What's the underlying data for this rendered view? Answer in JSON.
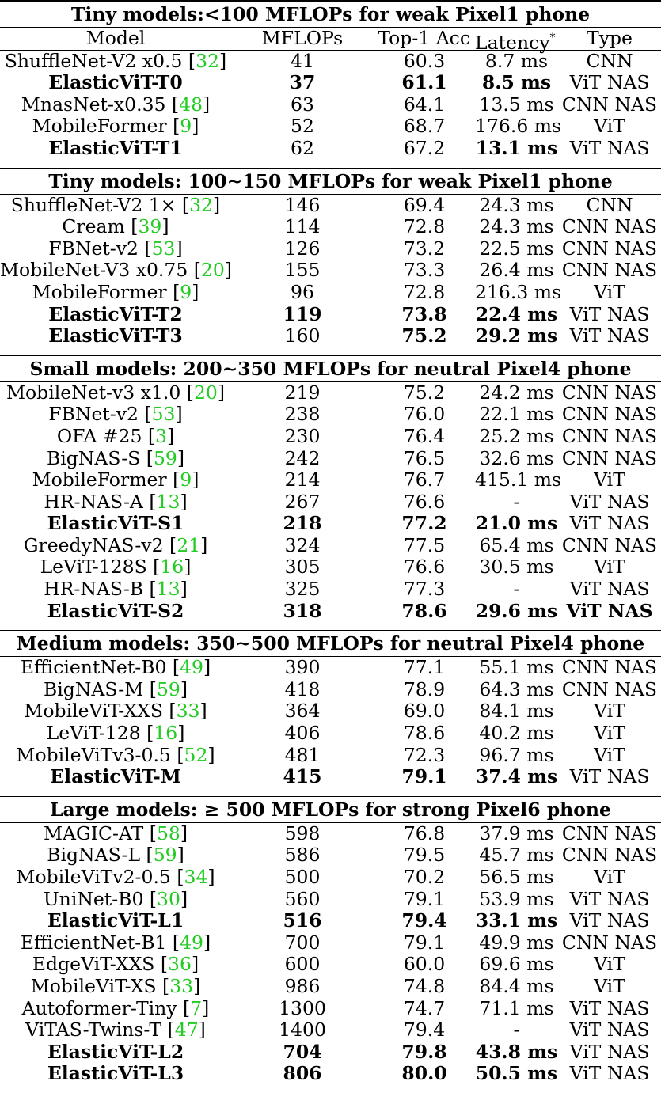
{
  "header": {
    "model": "Model",
    "mflops": "MFLOPs",
    "acc": "Top-1 Acc",
    "latency": "Latency",
    "latency_sup": "*",
    "type": "Type"
  },
  "sections": [
    {
      "title": "Tiny models:<100 MFLOPs for weak Pixel1 phone",
      "rows": [
        {
          "model": "ShuffleNet-V2 x0.5 [",
          "ref": "32",
          "mflops": "41",
          "acc": "60.3",
          "latency": "8.7 ms",
          "type": "CNN",
          "bold": false
        },
        {
          "model": "ElasticViT-T0",
          "ref": "",
          "mflops": "37",
          "acc": "61.1",
          "latency": "8.5 ms",
          "type": "ViT NAS",
          "bold": true
        },
        {
          "model": "MnasNet-x0.35 [",
          "ref": "48",
          "mflops": "63",
          "acc": "64.1",
          "latency": "13.5 ms",
          "type": "CNN NAS",
          "bold": false
        },
        {
          "model": "MobileFormer [",
          "ref": "9",
          "mflops": "52",
          "acc": "68.7",
          "latency": "176.6 ms",
          "type": "ViT",
          "bold": false
        },
        {
          "model": "ElasticViT-T1",
          "ref": "",
          "mflops": "62",
          "acc": "67.2",
          "latency": "13.1 ms",
          "type": "ViT NAS",
          "bold": true,
          "bold_cols": [
            "model",
            "latency"
          ]
        }
      ]
    },
    {
      "title": "Tiny models: 100∼150 MFLOPs for weak Pixel1 phone",
      "rows": [
        {
          "model": "ShuffleNet-V2 1× [",
          "ref": "32",
          "mflops": "146",
          "acc": "69.4",
          "latency": "24.3 ms",
          "type": "CNN",
          "bold": false
        },
        {
          "model": "Cream [",
          "ref": "39",
          "mflops": "114",
          "acc": "72.8",
          "latency": "24.3 ms",
          "type": "CNN NAS",
          "bold": false
        },
        {
          "model": "FBNet-v2 [",
          "ref": "53",
          "mflops": "126",
          "acc": "73.2",
          "latency": "22.5 ms",
          "type": "CNN NAS",
          "bold": false
        },
        {
          "model": "MobileNet-V3 x0.75 [",
          "ref": "20",
          "mflops": "155",
          "acc": "73.3",
          "latency": "26.4 ms",
          "type": "CNN NAS",
          "bold": false
        },
        {
          "model": "MobileFormer [",
          "ref": "9",
          "mflops": "96",
          "acc": "72.8",
          "latency": "216.3 ms",
          "type": "ViT",
          "bold": false
        },
        {
          "model": "ElasticViT-T2",
          "ref": "",
          "mflops": "119",
          "acc": "73.8",
          "latency": "22.4 ms",
          "type": "ViT NAS",
          "bold": true
        },
        {
          "model": "ElasticViT-T3",
          "ref": "",
          "mflops": "160",
          "acc": "75.2",
          "latency": "29.2 ms",
          "type": "ViT NAS",
          "bold": true,
          "bold_cols": [
            "model",
            "acc",
            "latency"
          ]
        }
      ]
    },
    {
      "title": "Small models: 200∼350 MFLOPs for neutral Pixel4 phone",
      "rows": [
        {
          "model": "MobileNet-v3 x1.0 [",
          "ref": "20",
          "mflops": "219",
          "acc": "75.2",
          "latency": "24.2 ms",
          "type": "CNN NAS",
          "bold": false
        },
        {
          "model": "FBNet-v2 [",
          "ref": "53",
          "mflops": "238",
          "acc": "76.0",
          "latency": "22.1 ms",
          "type": "CNN NAS",
          "bold": false
        },
        {
          "model": "OFA #25 [",
          "ref": "3",
          "mflops": "230",
          "acc": "76.4",
          "latency": "25.2 ms",
          "type": "CNN NAS",
          "bold": false
        },
        {
          "model": "BigNAS-S [",
          "ref": "59",
          "mflops": "242",
          "acc": "76.5",
          "latency": "32.6 ms",
          "type": "CNN NAS",
          "bold": false
        },
        {
          "model": "MobileFormer [",
          "ref": "9",
          "mflops": "214",
          "acc": "76.7",
          "latency": "415.1 ms",
          "type": "ViT",
          "bold": false
        },
        {
          "model": "HR-NAS-A [",
          "ref": "13",
          "mflops": "267",
          "acc": "76.6",
          "latency": "-",
          "type": "ViT NAS",
          "bold": false
        },
        {
          "model": "ElasticViT-S1",
          "ref": "",
          "mflops": "218",
          "acc": "77.2",
          "latency": "21.0 ms",
          "type": "ViT NAS",
          "bold": true
        },
        {
          "model": "GreedyNAS-v2 [",
          "ref": "21",
          "mflops": "324",
          "acc": "77.5",
          "latency": "65.4 ms",
          "type": "CNN NAS",
          "bold": false
        },
        {
          "model": "LeViT-128S [",
          "ref": "16",
          "mflops": "305",
          "acc": "76.6",
          "latency": "30.5 ms",
          "type": "ViT",
          "bold": false
        },
        {
          "model": "HR-NAS-B [",
          "ref": "13",
          "mflops": "325",
          "acc": "77.3",
          "latency": "-",
          "type": "ViT NAS",
          "bold": false
        },
        {
          "model": "ElasticViT-S2",
          "ref": "",
          "mflops": "318",
          "acc": "78.6",
          "latency": "29.6 ms",
          "type": "ViT NAS",
          "bold": true,
          "bold_cols": [
            "model",
            "mflops",
            "acc",
            "latency",
            "type"
          ]
        }
      ]
    },
    {
      "title": "Medium models: 350∼500 MFLOPs for neutral Pixel4 phone",
      "rows": [
        {
          "model": "EfficientNet-B0 [",
          "ref": "49",
          "mflops": "390",
          "acc": "77.1",
          "latency": "55.1 ms",
          "type": "CNN NAS",
          "bold": false
        },
        {
          "model": "BigNAS-M [",
          "ref": "59",
          "mflops": "418",
          "acc": "78.9",
          "latency": "64.3 ms",
          "type": "CNN NAS",
          "bold": false
        },
        {
          "model": "MobileViT-XXS [",
          "ref": "33",
          "mflops": "364",
          "acc": "69.0",
          "latency": "84.1 ms",
          "type": "ViT",
          "bold": false
        },
        {
          "model": "LeViT-128 [",
          "ref": "16",
          "mflops": "406",
          "acc": "78.6",
          "latency": "40.2 ms",
          "type": "ViT",
          "bold": false
        },
        {
          "model": "MobileViTv3-0.5 [",
          "ref": "52",
          "mflops": "481",
          "acc": "72.3",
          "latency": "96.7 ms",
          "type": "ViT",
          "bold": false
        },
        {
          "model": "ElasticViT-M",
          "ref": "",
          "mflops": "415",
          "acc": "79.1",
          "latency": "37.4 ms",
          "type": "ViT NAS",
          "bold": true
        }
      ]
    },
    {
      "title": "Large models: ≥ 500 MFLOPs for strong Pixel6 phone",
      "rows": [
        {
          "model": "MAGIC-AT [",
          "ref": "58",
          "mflops": "598",
          "acc": "76.8",
          "latency": "37.9 ms",
          "type": "CNN NAS",
          "bold": false
        },
        {
          "model": "BigNAS-L [",
          "ref": "59",
          "mflops": "586",
          "acc": "79.5",
          "latency": "45.7 ms",
          "type": "CNN NAS",
          "bold": false
        },
        {
          "model": "MobileViTv2-0.5 [",
          "ref": "34",
          "mflops": "500",
          "acc": "70.2",
          "latency": "56.5 ms",
          "type": "ViT",
          "bold": false
        },
        {
          "model": "UniNet-B0 [",
          "ref": "30",
          "mflops": "560",
          "acc": "79.1",
          "latency": "53.9 ms",
          "type": "ViT NAS",
          "bold": false
        },
        {
          "model": "ElasticViT-L1",
          "ref": "",
          "mflops": "516",
          "acc": "79.4",
          "latency": "33.1 ms",
          "type": "ViT NAS",
          "bold": true
        },
        {
          "model": "EfficientNet-B1 [",
          "ref": "49",
          "mflops": "700",
          "acc": "79.1",
          "latency": "49.9 ms",
          "type": "CNN NAS",
          "bold": false
        },
        {
          "model": "EdgeViT-XXS [",
          "ref": "36",
          "mflops": "600",
          "acc": "60.0",
          "latency": "69.6 ms",
          "type": "ViT",
          "bold": false
        },
        {
          "model": "MobileViT-XS [",
          "ref": "33",
          "mflops": "986",
          "acc": "74.8",
          "latency": "84.4 ms",
          "type": "ViT",
          "bold": false
        },
        {
          "model": "Autoformer-Tiny [",
          "ref": "7",
          "mflops": "1300",
          "acc": "74.7",
          "latency": "71.1 ms",
          "type": "ViT NAS",
          "bold": false
        },
        {
          "model": "ViTAS-Twins-T [",
          "ref": "47",
          "mflops": "1400",
          "acc": "79.4",
          "latency": "-",
          "type": "ViT NAS",
          "bold": false
        },
        {
          "model": "ElasticViT-L2",
          "ref": "",
          "mflops": "704",
          "acc": "79.8",
          "latency": "43.8 ms",
          "type": "ViT NAS",
          "bold": true
        },
        {
          "model": "ElasticViT-L3",
          "ref": "",
          "mflops": "806",
          "acc": "80.0",
          "latency": "50.5 ms",
          "type": "ViT NAS",
          "bold": true
        }
      ]
    }
  ]
}
